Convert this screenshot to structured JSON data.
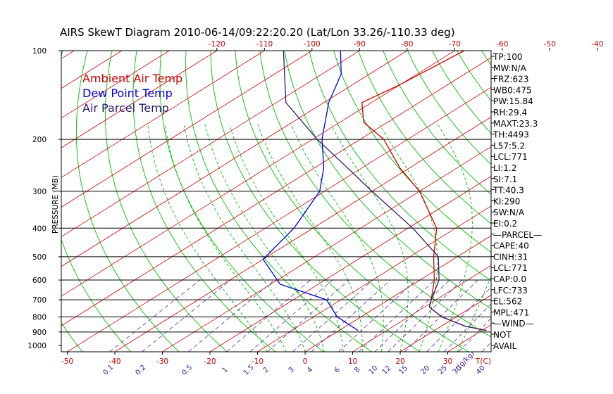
{
  "title": "AIRS SkewT Diagram 2010-06-14/09:22:20.20 (Lat/Lon 33.26/-110.33 deg)",
  "colors": {
    "ambient": "#d00000",
    "dewpoint": "#0000e0",
    "parcel": "#2a1a6a",
    "isotherm": "#d00000",
    "dry_adiabat": "#00c000",
    "moist_adiabat": "#00c000",
    "mixing_ratio": "#5a2ab0",
    "isobar": "#000000",
    "frame": "#000000"
  },
  "chart_data": {
    "type": "line",
    "title": "AIRS SkewT Diagram 2010-06-14/09:22:20.20 (Lat/Lon 33.26/-110.33 deg)",
    "xlabel": "T(C)",
    "ylabel": "PRESSURE (MB)",
    "y_scale": "log",
    "ylim": [
      1050,
      100
    ],
    "xlim_bottom": [
      -53,
      40
    ],
    "pressure_ticks": [
      100,
      200,
      300,
      400,
      500,
      600,
      700,
      800,
      900,
      1000
    ],
    "isobar_lines": [
      200,
      300,
      400,
      500,
      600,
      700,
      800,
      900
    ],
    "temp_ticks_bottom": [
      -50,
      -40,
      -30,
      -20,
      -10,
      0,
      10,
      20,
      30
    ],
    "temp_ticks_top": [
      -120,
      -110,
      -100,
      -90,
      -80,
      -70,
      -60,
      -50,
      -40
    ],
    "mixing_ratio_label": "r(g/kg)",
    "mixing_ratio_ticks": [
      "0.1",
      "0.2",
      "0.5",
      "1",
      "1.5",
      "2",
      "3",
      "4",
      "6",
      "8",
      "10",
      "12",
      "15",
      "20",
      "25",
      "30",
      "40"
    ],
    "legend": [
      "Ambient Air Temp",
      "Dew Point Temp",
      "Air Parcel Temp"
    ],
    "grid": true,
    "series": [
      {
        "name": "Ambient Air Temp",
        "points": [
          [
            890,
            31
          ],
          [
            860,
            25
          ],
          [
            800,
            17
          ],
          [
            740,
            11
          ],
          [
            700,
            9
          ],
          [
            600,
            3
          ],
          [
            500,
            -5
          ],
          [
            400,
            -14
          ],
          [
            300,
            -30
          ],
          [
            250,
            -42
          ],
          [
            200,
            -55
          ],
          [
            175,
            -65
          ],
          [
            150,
            -72
          ],
          [
            130,
            -70
          ],
          [
            100,
            -68
          ]
        ]
      },
      {
        "name": "Dew Point Temp",
        "points": [
          [
            890,
            4
          ],
          [
            800,
            -5
          ],
          [
            700,
            -13
          ],
          [
            620,
            -28
          ],
          [
            510,
            -40
          ],
          [
            400,
            -44
          ],
          [
            300,
            -51
          ],
          [
            250,
            -58
          ],
          [
            200,
            -68
          ],
          [
            150,
            -79
          ],
          [
            120,
            -86
          ],
          [
            100,
            -94
          ]
        ]
      },
      {
        "name": "Air Parcel Temp",
        "points": [
          [
            890,
            31
          ],
          [
            860,
            25
          ],
          [
            800,
            17
          ],
          [
            740,
            11
          ],
          [
            700,
            9
          ],
          [
            600,
            4
          ],
          [
            500,
            -4
          ],
          [
            400,
            -19
          ],
          [
            300,
            -40
          ],
          [
            250,
            -53
          ],
          [
            200,
            -69
          ],
          [
            150,
            -88
          ],
          [
            100,
            -106
          ]
        ]
      }
    ]
  },
  "indices": [
    "TP:100",
    "MW:N/A",
    "FRZ:623",
    "WB0:475",
    "PW:15.84",
    "RH:29.4",
    "MAXT:23.3",
    "TH:4493",
    "L57:5.2",
    "LCL:771",
    "LI:1.2",
    "SI:7.1",
    "TT:40.3",
    "KI:290",
    "SW:N/A",
    "EI:0.2",
    "—PARCEL—",
    "CAPE:40",
    "CINH:31",
    "LCL:771",
    "CAP:0.0",
    "LFC:733",
    "EL:562",
    "MPL:471",
    "—WIND—",
    "NOT",
    "AVAIL"
  ]
}
